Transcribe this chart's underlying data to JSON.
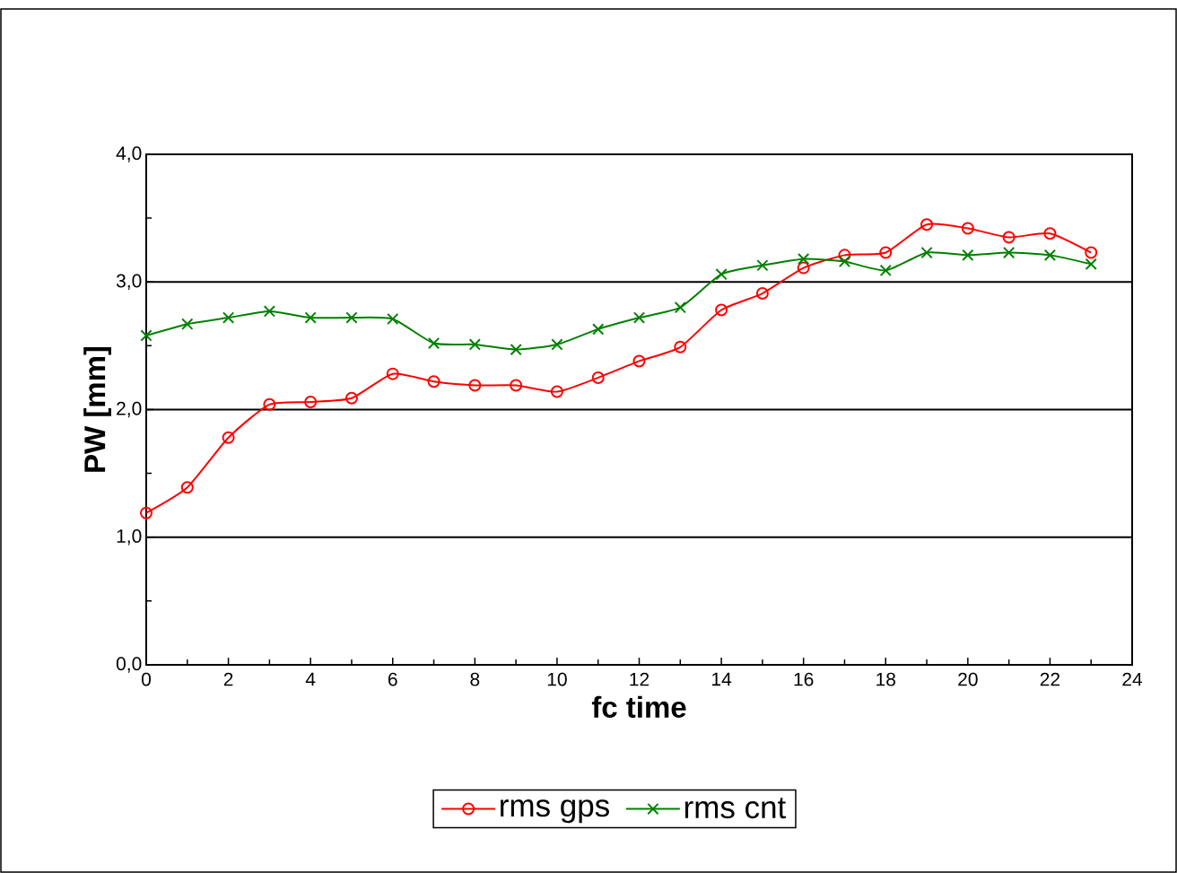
{
  "chart_data": {
    "type": "line",
    "xlabel": "fc time",
    "ylabel": "PW [mm]",
    "x": [
      0,
      1,
      2,
      3,
      4,
      5,
      6,
      7,
      8,
      9,
      10,
      11,
      12,
      13,
      14,
      15,
      16,
      17,
      18,
      19,
      20,
      21,
      22,
      23
    ],
    "series": [
      {
        "name": "rms gps",
        "color": "#ff0000",
        "marker": "circle",
        "values": [
          1.19,
          1.39,
          1.78,
          2.04,
          2.06,
          2.09,
          2.28,
          2.22,
          2.19,
          2.19,
          2.14,
          2.25,
          2.38,
          2.49,
          2.78,
          2.91,
          3.11,
          3.21,
          3.23,
          3.45,
          3.42,
          3.35,
          3.38,
          3.23
        ]
      },
      {
        "name": "rms cnt",
        "color": "#008000",
        "marker": "cross",
        "values": [
          2.58,
          2.67,
          2.72,
          2.77,
          2.72,
          2.72,
          2.71,
          2.52,
          2.51,
          2.47,
          2.51,
          2.63,
          2.72,
          2.8,
          3.06,
          3.13,
          3.18,
          3.16,
          3.09,
          3.23,
          3.21,
          3.23,
          3.21,
          3.14
        ]
      }
    ],
    "xlim": [
      0,
      24
    ],
    "xticks": [
      0,
      {
        "value": 1,
        "label": null
      },
      2,
      {
        "value": 3,
        "label": null
      },
      4,
      {
        "value": 5,
        "label": null
      },
      6,
      {
        "value": 7,
        "label": null
      },
      8,
      {
        "value": 9,
        "label": null
      },
      10,
      {
        "value": 11,
        "label": null
      },
      12,
      {
        "value": 13,
        "label": null
      },
      14,
      {
        "value": 15,
        "label": null
      },
      16,
      {
        "value": 17,
        "label": null
      },
      18,
      {
        "value": 19,
        "label": null
      },
      20,
      {
        "value": 21,
        "label": null
      },
      22,
      {
        "value": 23,
        "label": null
      },
      24
    ],
    "ylim": [
      0,
      4
    ],
    "yticks": [
      {
        "value": 0,
        "label": "0,0"
      },
      {
        "value": 0.5,
        "label": null
      },
      {
        "value": 1,
        "label": "1,0"
      },
      {
        "value": 1.5,
        "label": null
      },
      {
        "value": 2,
        "label": "2,0"
      },
      {
        "value": 2.5,
        "label": null
      },
      {
        "value": 3,
        "label": "3,0"
      },
      {
        "value": 3.5,
        "label": null
      },
      {
        "value": 4,
        "label": "4,0"
      }
    ],
    "grid": "y",
    "legend": "bottom",
    "line_style": "solid"
  }
}
